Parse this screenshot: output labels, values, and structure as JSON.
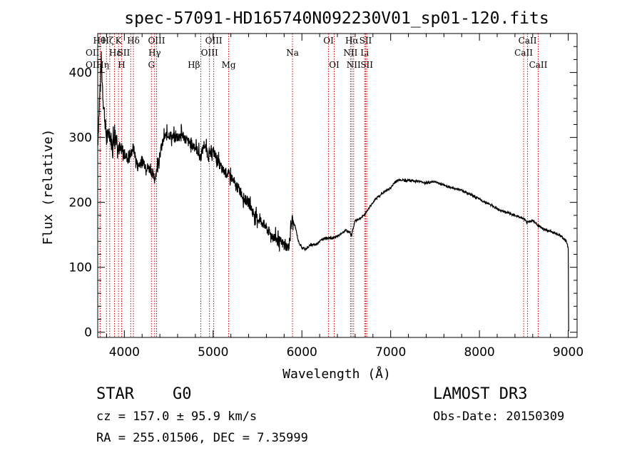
{
  "chart_data": {
    "type": "line",
    "title": "spec-57091-HD165740N092230V01_sp01-120.fits",
    "xlabel": "Wavelength (Å)",
    "ylabel": "Flux (relative)",
    "xlim": [
      3700,
      9100
    ],
    "ylim": [
      -8,
      460
    ],
    "x_ticks": [
      4000,
      5000,
      6000,
      7000,
      8000,
      9000
    ],
    "y_ticks": [
      0,
      100,
      200,
      300,
      400
    ],
    "series": [
      {
        "name": "flux",
        "x": [
          3700,
          3740,
          3760,
          3780,
          3800,
          3830,
          3860,
          3900,
          3950,
          4000,
          4050,
          4100,
          4150,
          4200,
          4250,
          4300,
          4340,
          4400,
          4450,
          4500,
          4550,
          4600,
          4650,
          4700,
          4750,
          4800,
          4861,
          4900,
          4950,
          5000,
          5050,
          5100,
          5150,
          5200,
          5250,
          5300,
          5350,
          5400,
          5450,
          5500,
          5550,
          5600,
          5650,
          5700,
          5750,
          5800,
          5850,
          5890,
          5930,
          5960,
          6000,
          6050,
          6100,
          6150,
          6200,
          6250,
          6300,
          6350,
          6400,
          6450,
          6500,
          6560,
          6600,
          6650,
          6700,
          6750,
          6800,
          6850,
          6900,
          6950,
          7000,
          7050,
          7100,
          7150,
          7200,
          7300,
          7400,
          7500,
          7600,
          7700,
          7800,
          7900,
          8000,
          8100,
          8200,
          8300,
          8400,
          8500,
          8542,
          8600,
          8662,
          8700,
          8800,
          8900,
          8980,
          9000,
          9005
        ],
        "y": [
          290,
          420,
          360,
          330,
          295,
          310,
          290,
          305,
          280,
          275,
          265,
          285,
          255,
          265,
          255,
          250,
          235,
          275,
          300,
          305,
          300,
          300,
          305,
          295,
          290,
          285,
          270,
          290,
          270,
          280,
          265,
          250,
          245,
          240,
          225,
          220,
          205,
          200,
          185,
          175,
          170,
          160,
          150,
          145,
          140,
          135,
          130,
          175,
          160,
          140,
          130,
          128,
          135,
          135,
          140,
          145,
          145,
          145,
          148,
          152,
          158,
          150,
          172,
          175,
          180,
          190,
          200,
          208,
          213,
          218,
          222,
          232,
          235,
          234,
          234,
          233,
          230,
          232,
          226,
          222,
          219,
          212,
          205,
          198,
          190,
          185,
          180,
          175,
          170,
          172,
          165,
          160,
          155,
          150,
          140,
          130,
          2
        ]
      }
    ],
    "line_markers": [
      {
        "label": "OII",
        "x": 3727,
        "row": 2,
        "pos": "left"
      },
      {
        "label": "OII",
        "x": 3727,
        "row": 3,
        "pos": "left"
      },
      {
        "label": "Hθ",
        "x": 3798,
        "row": 1,
        "pos": "left"
      },
      {
        "label": "Hη",
        "x": 3835,
        "row": 3,
        "pos": "left"
      },
      {
        "label": "Hζ",
        "x": 3889,
        "row": 1,
        "pos": "left"
      },
      {
        "label": "Hε",
        "x": 3970,
        "row": 2,
        "pos": "left"
      },
      {
        "label": "K",
        "x": 3934,
        "row": 1,
        "pos": "center"
      },
      {
        "label": "H",
        "x": 3969,
        "row": 3,
        "pos": "center"
      },
      {
        "label": "SII",
        "x": 4072,
        "row": 2,
        "pos": "left"
      },
      {
        "label": "Hδ",
        "x": 4102,
        "row": 1,
        "pos": "center"
      },
      {
        "label": "G",
        "x": 4305,
        "row": 3,
        "pos": "center"
      },
      {
        "label": "Hγ",
        "x": 4341,
        "row": 2,
        "pos": "center"
      },
      {
        "label": "OIII",
        "x": 4363,
        "row": 1,
        "pos": "center"
      },
      {
        "label": "Hβ",
        "x": 4861,
        "row": 3,
        "pos": "left"
      },
      {
        "label": "OIII",
        "x": 4959,
        "row": 2,
        "pos": "center"
      },
      {
        "label": "OIII",
        "x": 5007,
        "row": 1,
        "pos": "center"
      },
      {
        "label": "Mg",
        "x": 5175,
        "row": 3,
        "pos": "center"
      },
      {
        "label": "Na",
        "x": 5894,
        "row": 2,
        "pos": "center"
      },
      {
        "label": "OI",
        "x": 6300,
        "row": 1,
        "pos": "center"
      },
      {
        "label": "OI",
        "x": 6364,
        "row": 3,
        "pos": "center"
      },
      {
        "label": "NII",
        "x": 6548,
        "row": 2,
        "pos": "center"
      },
      {
        "label": "Hα",
        "x": 6563,
        "row": 1,
        "pos": "center"
      },
      {
        "label": "NII",
        "x": 6583,
        "row": 3,
        "pos": "center"
      },
      {
        "label": "SII",
        "x": 6717,
        "row": 1,
        "pos": "center"
      },
      {
        "label": "Li",
        "x": 6707,
        "row": 2,
        "pos": "center"
      },
      {
        "label": "SII",
        "x": 6731,
        "row": 3,
        "pos": "center"
      },
      {
        "label": "CaII",
        "x": 8498,
        "row": 2,
        "pos": "center"
      },
      {
        "label": "CaII",
        "x": 8542,
        "row": 1,
        "pos": "center"
      },
      {
        "label": "CaII",
        "x": 8662,
        "row": 3,
        "pos": "center"
      }
    ],
    "marker_color": "#d00000"
  },
  "info": {
    "class": "STAR",
    "subclass": "G0",
    "survey": "LAMOST DR3",
    "cz": "cz = 157.0 ± 95.9 km/s",
    "obs_date": "Obs-Date: 20150309",
    "radec": "RA = 255.01506, DEC =   7.35999"
  }
}
